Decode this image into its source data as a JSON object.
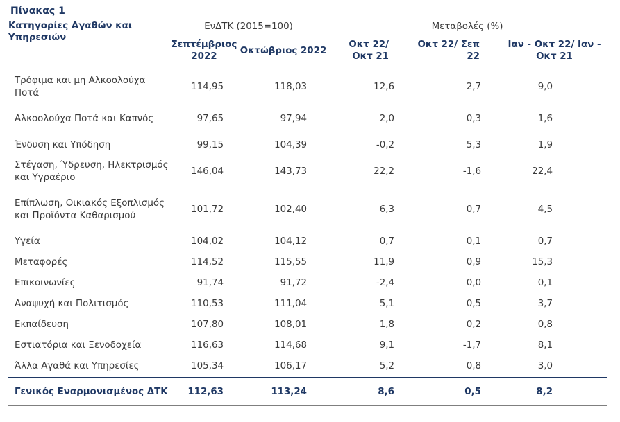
{
  "title": "Πίνακας 1",
  "header": {
    "category": "Κατηγορίες Αγαθών και Υπηρεσιών",
    "group_index": "ΕνΔΤΚ (2015=100)",
    "group_change": "Μεταβολές (%)",
    "columns": [
      "Σεπτέμβριος 2022",
      "Οκτώβριος 2022",
      "Οκτ 22/ Οκτ 21",
      "Οκτ 22/ Σεπ 22",
      "Ιαν - Οκτ 22/ Ιαν - Οκτ 21"
    ]
  },
  "rows": [
    {
      "label": "Τρόφιμα και μη Αλκοολούχα Ποτά",
      "v": [
        "114,95",
        "118,03",
        "12,6",
        "2,7",
        "9,0"
      ]
    },
    {
      "label": "Αλκοολούχα Ποτά και Καπνός",
      "v": [
        "97,65",
        "97,94",
        "2,0",
        "0,3",
        "1,6"
      ]
    },
    {
      "label": "Ένδυση και Υπόδηση",
      "v": [
        "99,15",
        "104,39",
        "-0,2",
        "5,3",
        "1,9"
      ]
    },
    {
      "label": "Στέγαση, Ύδρευση, Ηλεκτρισμός και Υγραέριο",
      "v": [
        "146,04",
        "143,73",
        "22,2",
        "-1,6",
        "22,4"
      ]
    },
    {
      "label": "Επίπλωση, Οικιακός Εξοπλισμός και Προϊόντα Καθαρισμού",
      "v": [
        "101,72",
        "102,40",
        "6,3",
        "0,7",
        "4,5"
      ]
    },
    {
      "label": "Υγεία",
      "v": [
        "104,02",
        "104,12",
        "0,7",
        "0,1",
        "0,7"
      ]
    },
    {
      "label": "Μεταφορές",
      "v": [
        "114,52",
        "115,55",
        "11,9",
        "0,9",
        "15,3"
      ]
    },
    {
      "label": "Επικοινωνίες",
      "v": [
        "91,74",
        "91,72",
        "-2,4",
        "0,0",
        "0,1"
      ]
    },
    {
      "label": "Αναψυχή και Πολιτισμός",
      "v": [
        "110,53",
        "111,04",
        "5,1",
        "0,5",
        "3,7"
      ]
    },
    {
      "label": "Εκπαίδευση",
      "v": [
        "107,80",
        "108,01",
        "1,8",
        "0,2",
        "0,8"
      ]
    },
    {
      "label": "Εστιατόρια και Ξενοδοχεία",
      "v": [
        "116,63",
        "114,68",
        "9,1",
        "-1,7",
        "8,1"
      ]
    },
    {
      "label": "Άλλα Αγαθά και Υπηρεσίες",
      "v": [
        "105,34",
        "106,17",
        "5,2",
        "0,8",
        "3,0"
      ]
    }
  ],
  "total": {
    "label": "Γενικός Εναρμονισμένος ΔΤΚ",
    "v": [
      "112,63",
      "113,24",
      "8,6",
      "0,5",
      "8,2"
    ]
  },
  "colors": {
    "header_text": "#1f3864",
    "body_text": "#3a3a3a"
  }
}
